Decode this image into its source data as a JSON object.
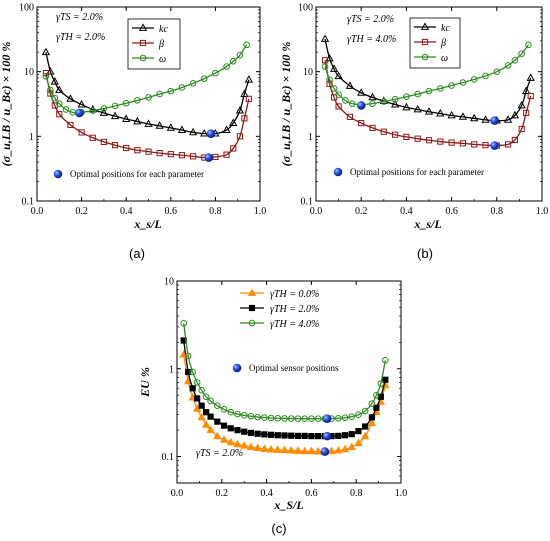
{
  "chart_data": [
    {
      "type": "line",
      "panel_label": "(a)",
      "xlabel": "x_s/L",
      "ylabel": "(σ_u,LB / u_Bc) × 100 %",
      "xlim": [
        0,
        1
      ],
      "ylim": [
        0.1,
        100
      ],
      "yscale": "log",
      "xticks": [
        "0.0",
        "0.2",
        "0.4",
        "0.6",
        "0.8",
        "1.0"
      ],
      "yticks": [
        "0.1",
        "1",
        "10",
        "100"
      ],
      "annotations": [
        "γTS = 2.0%",
        "γTH = 2.0%"
      ],
      "legend_position": "top-right",
      "optimal_note": "Optimal positions for each parameter",
      "series": [
        {
          "name": "kc",
          "color": "#000000",
          "marker": "triangle",
          "x": [
            0.04,
            0.06,
            0.08,
            0.1,
            0.15,
            0.2,
            0.25,
            0.3,
            0.35,
            0.4,
            0.45,
            0.5,
            0.55,
            0.6,
            0.65,
            0.7,
            0.75,
            0.8,
            0.85,
            0.88,
            0.91,
            0.93,
            0.95
          ],
          "y": [
            20,
            10,
            7.0,
            5.2,
            3.8,
            3.1,
            2.6,
            2.3,
            2.05,
            1.85,
            1.7,
            1.55,
            1.45,
            1.35,
            1.25,
            1.15,
            1.1,
            1.1,
            1.25,
            1.6,
            2.5,
            4.5,
            7.5
          ]
        },
        {
          "name": "β",
          "color": "#8B1A1A",
          "marker": "square",
          "x": [
            0.04,
            0.06,
            0.08,
            0.1,
            0.15,
            0.2,
            0.25,
            0.3,
            0.35,
            0.4,
            0.45,
            0.5,
            0.55,
            0.6,
            0.65,
            0.7,
            0.75,
            0.8,
            0.85,
            0.88,
            0.91,
            0.93,
            0.95
          ],
          "y": [
            9.5,
            4.6,
            3.0,
            2.2,
            1.5,
            1.15,
            0.95,
            0.82,
            0.73,
            0.66,
            0.61,
            0.58,
            0.55,
            0.53,
            0.51,
            0.49,
            0.47,
            0.48,
            0.52,
            0.65,
            1.0,
            1.9,
            3.8
          ]
        },
        {
          "name": "ω",
          "color": "#2E8B22",
          "marker": "circle",
          "x": [
            0.04,
            0.06,
            0.08,
            0.1,
            0.13,
            0.16,
            0.2,
            0.25,
            0.3,
            0.35,
            0.4,
            0.45,
            0.5,
            0.55,
            0.6,
            0.65,
            0.7,
            0.75,
            0.8,
            0.85,
            0.88,
            0.91,
            0.94
          ],
          "y": [
            8.5,
            5.2,
            3.9,
            3.2,
            2.6,
            2.35,
            2.35,
            2.5,
            2.7,
            2.95,
            3.25,
            3.6,
            4.0,
            4.5,
            5.0,
            5.7,
            6.6,
            7.8,
            9.5,
            12,
            14.5,
            18,
            26
          ]
        }
      ],
      "optimal_points": [
        {
          "x": 0.19,
          "y": 2.3
        },
        {
          "x": 0.78,
          "y": 1.1
        },
        {
          "x": 0.77,
          "y": 0.47
        }
      ]
    },
    {
      "type": "line",
      "panel_label": "(b)",
      "xlabel": "x_s/L",
      "ylabel": "(σ_u,LB / u_Bc) × 100 %",
      "xlim": [
        0,
        1
      ],
      "ylim": [
        0.1,
        100
      ],
      "yscale": "log",
      "xticks": [
        "0.0",
        "0.2",
        "0.4",
        "0.6",
        "0.8",
        "1.0"
      ],
      "yticks": [
        "0.1",
        "1",
        "10",
        "100"
      ],
      "annotations": [
        "γTS = 2.0%",
        "γTH = 4.0%"
      ],
      "legend_position": "top-right",
      "optimal_note": "Optimal positions for each parameter",
      "series": [
        {
          "name": "kc",
          "color": "#000000",
          "marker": "triangle",
          "x": [
            0.04,
            0.06,
            0.08,
            0.1,
            0.15,
            0.2,
            0.25,
            0.3,
            0.35,
            0.4,
            0.45,
            0.5,
            0.55,
            0.6,
            0.65,
            0.7,
            0.75,
            0.8,
            0.85,
            0.88,
            0.91,
            0.93,
            0.95
          ],
          "y": [
            32,
            16,
            11,
            8.5,
            6.0,
            4.7,
            4.0,
            3.5,
            3.1,
            2.8,
            2.6,
            2.4,
            2.25,
            2.1,
            2.0,
            1.9,
            1.8,
            1.75,
            1.8,
            2.1,
            3.0,
            5.0,
            8.0
          ]
        },
        {
          "name": "β",
          "color": "#8B1A1A",
          "marker": "square",
          "x": [
            0.04,
            0.06,
            0.08,
            0.1,
            0.15,
            0.2,
            0.25,
            0.3,
            0.35,
            0.4,
            0.45,
            0.5,
            0.55,
            0.6,
            0.65,
            0.7,
            0.75,
            0.8,
            0.85,
            0.88,
            0.91,
            0.93,
            0.95
          ],
          "y": [
            15,
            6.5,
            4.0,
            2.9,
            2.0,
            1.6,
            1.35,
            1.18,
            1.06,
            0.98,
            0.92,
            0.87,
            0.83,
            0.8,
            0.78,
            0.75,
            0.73,
            0.72,
            0.75,
            0.88,
            1.3,
            2.3,
            4.2
          ]
        },
        {
          "name": "ω",
          "color": "#2E8B22",
          "marker": "circle",
          "x": [
            0.04,
            0.06,
            0.08,
            0.1,
            0.13,
            0.16,
            0.2,
            0.25,
            0.3,
            0.35,
            0.4,
            0.45,
            0.5,
            0.55,
            0.6,
            0.65,
            0.7,
            0.75,
            0.8,
            0.85,
            0.88,
            0.91,
            0.94
          ],
          "y": [
            12,
            7.5,
            5.5,
            4.4,
            3.6,
            3.2,
            3.1,
            3.2,
            3.45,
            3.75,
            4.1,
            4.5,
            5.0,
            5.5,
            6.1,
            6.8,
            7.6,
            8.6,
            10,
            12.5,
            15,
            19,
            26
          ]
        }
      ],
      "optimal_points": [
        {
          "x": 0.2,
          "y": 3.0
        },
        {
          "x": 0.79,
          "y": 1.75
        },
        {
          "x": 0.79,
          "y": 0.72
        }
      ]
    },
    {
      "type": "line",
      "panel_label": "(c)",
      "xlabel": "x_S/L",
      "ylabel": "EU %",
      "xlim": [
        0,
        1
      ],
      "ylim": [
        0.05,
        10
      ],
      "yscale": "log",
      "xticks": [
        "0.0",
        "0.2",
        "0.4",
        "0.6",
        "0.8",
        "1.0"
      ],
      "yticks": [
        "0.1",
        "1",
        "10"
      ],
      "annotations": [
        "γTS = 2.0%"
      ],
      "legend_position": "top-left",
      "optimal_note": "Optimal sensor positions",
      "series": [
        {
          "name": "γTH = 0.0%",
          "color": "#FF8C00",
          "marker": "triangle",
          "x": [
            0.03,
            0.05,
            0.07,
            0.09,
            0.11,
            0.13,
            0.15,
            0.18,
            0.21,
            0.24,
            0.27,
            0.3,
            0.33,
            0.36,
            0.39,
            0.42,
            0.45,
            0.48,
            0.51,
            0.54,
            0.57,
            0.6,
            0.63,
            0.66,
            0.69,
            0.72,
            0.75,
            0.78,
            0.81,
            0.84,
            0.87,
            0.89,
            0.91,
            0.93
          ],
          "y": [
            1.45,
            0.72,
            0.47,
            0.35,
            0.28,
            0.23,
            0.2,
            0.17,
            0.155,
            0.145,
            0.138,
            0.133,
            0.128,
            0.125,
            0.122,
            0.12,
            0.119,
            0.118,
            0.117,
            0.116,
            0.115,
            0.115,
            0.114,
            0.114,
            0.115,
            0.117,
            0.121,
            0.128,
            0.142,
            0.17,
            0.24,
            0.32,
            0.42,
            0.65
          ]
        },
        {
          "name": "γTH = 2.0%",
          "color": "#000000",
          "marker": "square",
          "x": [
            0.03,
            0.05,
            0.07,
            0.09,
            0.11,
            0.13,
            0.15,
            0.18,
            0.21,
            0.24,
            0.27,
            0.3,
            0.33,
            0.36,
            0.39,
            0.42,
            0.45,
            0.48,
            0.51,
            0.54,
            0.57,
            0.6,
            0.63,
            0.66,
            0.69,
            0.72,
            0.75,
            0.78,
            0.81,
            0.84,
            0.87,
            0.89,
            0.91,
            0.93
          ],
          "y": [
            2.1,
            0.92,
            0.6,
            0.46,
            0.38,
            0.32,
            0.285,
            0.25,
            0.225,
            0.21,
            0.2,
            0.192,
            0.186,
            0.182,
            0.179,
            0.177,
            0.175,
            0.174,
            0.173,
            0.172,
            0.172,
            0.171,
            0.171,
            0.171,
            0.171,
            0.172,
            0.175,
            0.18,
            0.195,
            0.22,
            0.28,
            0.36,
            0.48,
            0.75
          ]
        },
        {
          "name": "γTH = 4.0%",
          "color": "#2E8B22",
          "marker": "circle",
          "x": [
            0.03,
            0.05,
            0.07,
            0.09,
            0.11,
            0.13,
            0.15,
            0.18,
            0.21,
            0.24,
            0.27,
            0.3,
            0.33,
            0.36,
            0.39,
            0.42,
            0.45,
            0.48,
            0.51,
            0.54,
            0.57,
            0.6,
            0.63,
            0.66,
            0.69,
            0.72,
            0.75,
            0.78,
            0.81,
            0.84,
            0.87,
            0.89,
            0.91,
            0.93
          ],
          "y": [
            3.3,
            1.4,
            0.92,
            0.7,
            0.57,
            0.48,
            0.43,
            0.38,
            0.345,
            0.32,
            0.305,
            0.295,
            0.288,
            0.282,
            0.278,
            0.275,
            0.273,
            0.272,
            0.271,
            0.27,
            0.27,
            0.27,
            0.27,
            0.27,
            0.271,
            0.273,
            0.277,
            0.285,
            0.3,
            0.33,
            0.4,
            0.5,
            0.68,
            1.25
          ]
        }
      ],
      "optimal_points": [
        {
          "x": 0.67,
          "y": 0.27
        },
        {
          "x": 0.67,
          "y": 0.171
        },
        {
          "x": 0.66,
          "y": 0.114
        }
      ]
    }
  ]
}
